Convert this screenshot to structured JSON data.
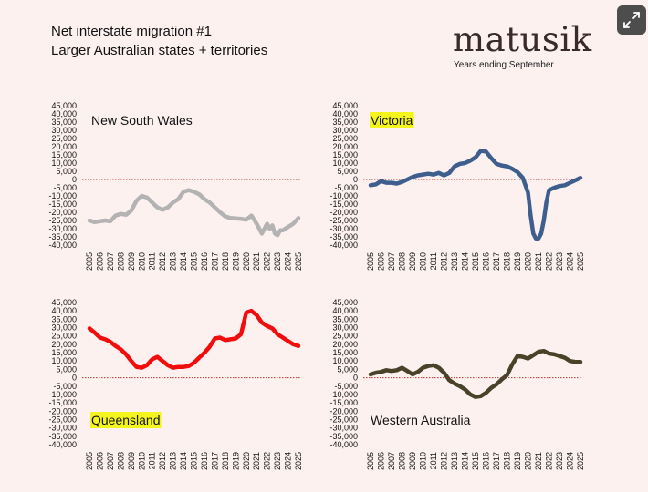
{
  "header": {
    "title": "Net interstate migration #1",
    "subtitle": "Larger Australian states + territories"
  },
  "brand": {
    "logo": "matusik",
    "tagline": "Years ending September"
  },
  "icons": {
    "expand": "expand-icon"
  },
  "colors": {
    "background": "#fdf1f0",
    "zero_line": "#b03a2e",
    "highlight": "#f5f51e"
  },
  "chart_data": [
    {
      "type": "line",
      "title": "New South Wales",
      "title_highlight": false,
      "color": "#b3b3b3",
      "ylim": [
        -40000,
        45000
      ],
      "yticks": [
        45000,
        40000,
        35000,
        30000,
        25000,
        20000,
        15000,
        10000,
        5000,
        0,
        -5000,
        -10000,
        -15000,
        -20000,
        -25000,
        -30000,
        -35000,
        -40000
      ],
      "ytick_labels": [
        "45,000",
        "40,000",
        "35,000",
        "30,000",
        "25,000",
        "20,000",
        "15,000",
        "10,000",
        "5,000",
        "0",
        "-5,000",
        "-10,000",
        "-15,000",
        "-20,000",
        "-25,000",
        "-30,000",
        "-35,000",
        "-40,000"
      ],
      "xlim": [
        2005,
        2025
      ],
      "xticks": [
        "2005",
        "2006",
        "2007",
        "2008",
        "2009",
        "2010",
        "2011",
        "2012",
        "2013",
        "2014",
        "2015",
        "2016",
        "2017",
        "2018",
        "2019",
        "2020",
        "2021",
        "2022",
        "2023",
        "2024",
        "2025"
      ],
      "x": [
        2005,
        2005.5,
        2006,
        2006.5,
        2007,
        2007.5,
        2008,
        2008.5,
        2009,
        2009.5,
        2010,
        2010.5,
        2011,
        2011.5,
        2012,
        2012.5,
        2013,
        2013.5,
        2014,
        2014.5,
        2015,
        2015.5,
        2016,
        2016.5,
        2017,
        2017.5,
        2018,
        2018.5,
        2019,
        2019.5,
        2020,
        2020.5,
        2021,
        2021.25,
        2021.5,
        2021.75,
        2022,
        2022.25,
        2022.5,
        2022.75,
        2023,
        2023.25,
        2023.5,
        2024,
        2024.5,
        2025
      ],
      "y": [
        -25000,
        -26000,
        -25500,
        -25000,
        -25500,
        -22000,
        -21000,
        -21500,
        -19000,
        -13000,
        -10000,
        -11000,
        -14000,
        -17000,
        -18500,
        -17000,
        -14000,
        -12000,
        -7500,
        -6500,
        -7500,
        -9000,
        -12000,
        -14000,
        -17000,
        -20000,
        -22500,
        -23500,
        -23800,
        -24000,
        -24500,
        -22000,
        -27000,
        -30000,
        -33000,
        -30000,
        -27000,
        -30000,
        -28000,
        -33000,
        -34000,
        -31000,
        -31000,
        -29000,
        -27000,
        -23500
      ]
    },
    {
      "type": "line",
      "title": "Victoria",
      "title_highlight": true,
      "color": "#3e5f8e",
      "ylim": [
        -40000,
        45000
      ],
      "yticks": [
        45000,
        40000,
        35000,
        30000,
        25000,
        20000,
        15000,
        10000,
        5000,
        0,
        -5000,
        -10000,
        -15000,
        -20000,
        -25000,
        -30000,
        -35000,
        -40000
      ],
      "ytick_labels": [
        "45,000",
        "40,000",
        "35,000",
        "30,000",
        "25,000",
        "20,000",
        "15,000",
        "10,000",
        "5,000",
        "0",
        "-5,000",
        "-10,000",
        "-15,000",
        "-20,000",
        "-25,000",
        "-30,000",
        "-35,000",
        "-40,000"
      ],
      "xlim": [
        2005,
        2025
      ],
      "xticks": [
        "2005",
        "2006",
        "2007",
        "2008",
        "2009",
        "2010",
        "2011",
        "2012",
        "2013",
        "2014",
        "2015",
        "2016",
        "2017",
        "2018",
        "2019",
        "2020",
        "2021",
        "2022",
        "2023",
        "2024",
        "2025"
      ],
      "x": [
        2005,
        2005.5,
        2006,
        2006.5,
        2007,
        2007.5,
        2008,
        2008.5,
        2009,
        2009.5,
        2010,
        2010.5,
        2011,
        2011.5,
        2012,
        2012.5,
        2013,
        2013.5,
        2014,
        2014.5,
        2015,
        2015.5,
        2016,
        2016.5,
        2017,
        2017.5,
        2018,
        2018.5,
        2019,
        2019.5,
        2020,
        2020.25,
        2020.5,
        2020.75,
        2021,
        2021.25,
        2021.5,
        2021.75,
        2022,
        2022.5,
        2023,
        2023.5,
        2024,
        2024.5,
        2025
      ],
      "y": [
        -3500,
        -3000,
        -1000,
        -2000,
        -2000,
        -2500,
        -1500,
        0,
        1500,
        2500,
        3000,
        3500,
        3000,
        4000,
        2500,
        4000,
        8000,
        9500,
        10000,
        11500,
        13500,
        17500,
        17000,
        13000,
        9500,
        8500,
        8000,
        6500,
        4500,
        1000,
        -8000,
        -22000,
        -33000,
        -36000,
        -36000,
        -33000,
        -25000,
        -14000,
        -6500,
        -5000,
        -4000,
        -3500,
        -2000,
        -500,
        1000
      ]
    },
    {
      "type": "line",
      "title": "Queensland",
      "title_highlight": true,
      "color": "#f20d0d",
      "ylim": [
        -40000,
        45000
      ],
      "yticks": [
        45000,
        40000,
        35000,
        30000,
        25000,
        20000,
        15000,
        10000,
        5000,
        0,
        -5000,
        -10000,
        -15000,
        -20000,
        -25000,
        -30000,
        -35000,
        -40000
      ],
      "ytick_labels": [
        "45,000",
        "40,000",
        "35,000",
        "30,000",
        "25,000",
        "20,000",
        "15,000",
        "10,000",
        "5,000",
        "0",
        "-5,000",
        "-10,000",
        "-15,000",
        "-20,000",
        "-25,000",
        "-30,000",
        "-35,000",
        "-40,000"
      ],
      "xlim": [
        2005,
        2025
      ],
      "xticks": [
        "2005",
        "2006",
        "2007",
        "2008",
        "2009",
        "2010",
        "2011",
        "2012",
        "2013",
        "2014",
        "2015",
        "2016",
        "2017",
        "2018",
        "2019",
        "2020",
        "2021",
        "2022",
        "2023",
        "2024",
        "2025"
      ],
      "x": [
        2005,
        2005.5,
        2006,
        2006.5,
        2007,
        2007.5,
        2008,
        2008.5,
        2009,
        2009.5,
        2010,
        2010.5,
        2011,
        2011.5,
        2012,
        2012.5,
        2013,
        2013.5,
        2014,
        2014.5,
        2015,
        2015.5,
        2016,
        2016.5,
        2017,
        2017.5,
        2018,
        2018.5,
        2019,
        2019.5,
        2020,
        2020.5,
        2021,
        2021.5,
        2022,
        2022.5,
        2023,
        2023.5,
        2024,
        2024.5,
        2025
      ],
      "y": [
        29500,
        27000,
        24000,
        23000,
        21500,
        19000,
        17000,
        14000,
        10000,
        6500,
        6000,
        7500,
        11000,
        12500,
        10000,
        7500,
        6000,
        6500,
        6500,
        7000,
        9000,
        12000,
        15000,
        18500,
        23500,
        24000,
        22500,
        23000,
        23500,
        26000,
        39000,
        40000,
        37500,
        33000,
        31000,
        29500,
        26000,
        24000,
        22000,
        20000,
        19000
      ]
    },
    {
      "type": "line",
      "title": "Western Australia",
      "title_highlight": false,
      "color": "#4a4128",
      "ylim": [
        -40000,
        45000
      ],
      "yticks": [
        45000,
        40000,
        35000,
        30000,
        25000,
        20000,
        15000,
        10000,
        5000,
        0,
        -5000,
        -10000,
        -15000,
        -20000,
        -25000,
        -30000,
        -35000,
        -40000
      ],
      "ytick_labels": [
        "45,000",
        "40,000",
        "35,000",
        "30,000",
        "25,000",
        "20,000",
        "15,000",
        "10,000",
        "5,000",
        "0",
        "-5,000",
        "-10,000",
        "-15,000",
        "-20,000",
        "-25,000",
        "-30,000",
        "-35,000",
        "-40,000"
      ],
      "xlim": [
        2005,
        2025
      ],
      "xticks": [
        "2005",
        "2006",
        "2007",
        "2008",
        "2009",
        "2010",
        "2011",
        "2012",
        "2013",
        "2014",
        "2015",
        "2016",
        "2017",
        "2018",
        "2019",
        "2020",
        "2021",
        "2022",
        "2023",
        "2024",
        "2025"
      ],
      "x": [
        2005,
        2005.5,
        2006,
        2006.5,
        2007,
        2007.5,
        2008,
        2008.5,
        2009,
        2009.5,
        2010,
        2010.5,
        2011,
        2011.5,
        2012,
        2012.5,
        2013,
        2013.5,
        2014,
        2014.5,
        2015,
        2015.5,
        2016,
        2016.5,
        2017,
        2017.5,
        2018,
        2018.5,
        2019,
        2019.5,
        2020,
        2020.5,
        2021,
        2021.5,
        2022,
        2022.5,
        2023,
        2023.5,
        2024,
        2024.5,
        2025
      ],
      "y": [
        2000,
        3000,
        3500,
        4500,
        4000,
        4500,
        6000,
        4000,
        2000,
        3500,
        6000,
        7000,
        7500,
        6000,
        3000,
        -1500,
        -3500,
        -5000,
        -7000,
        -10000,
        -11500,
        -11000,
        -9000,
        -6000,
        -4000,
        -1000,
        1500,
        8000,
        13000,
        12500,
        11500,
        13500,
        15500,
        16000,
        14500,
        14000,
        13000,
        12000,
        10000,
        9500,
        9500
      ]
    }
  ]
}
